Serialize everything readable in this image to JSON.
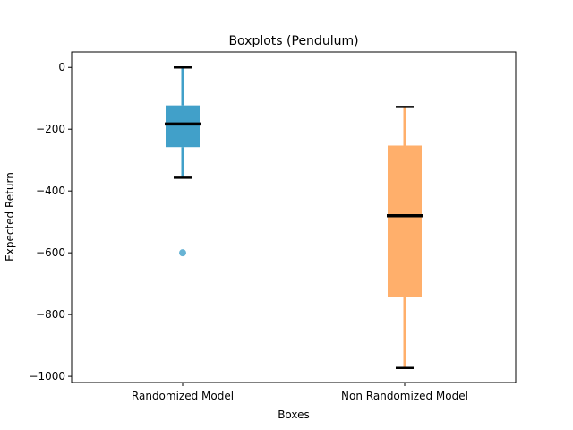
{
  "chart_data": {
    "type": "box",
    "title": "Boxplots (Pendulum)",
    "xlabel": "Boxes",
    "ylabel": "Expected Return",
    "ylim": [
      -1020,
      50
    ],
    "yticks": [
      0,
      -200,
      -400,
      -600,
      -800,
      -1000
    ],
    "ytick_labels": [
      "0",
      "−200",
      "−400",
      "−600",
      "−800",
      "−1000"
    ],
    "categories": [
      "Randomized Model",
      "Non Randomized Model"
    ],
    "grid": false,
    "boxes": [
      {
        "category": "Randomized Model",
        "whisker_low": -357,
        "q1": -258,
        "median": -183,
        "q3": -123,
        "whisker_high": 0,
        "outliers": [
          -600
        ],
        "color": "#41a0c9"
      },
      {
        "category": "Non Randomized Model",
        "whisker_low": -973,
        "q1": -743,
        "median": -480,
        "q3": -253,
        "whisker_high": -128,
        "outliers": [],
        "color": "#ffaf6b"
      }
    ],
    "median_color": "#000000",
    "cap_color": "#000000"
  }
}
